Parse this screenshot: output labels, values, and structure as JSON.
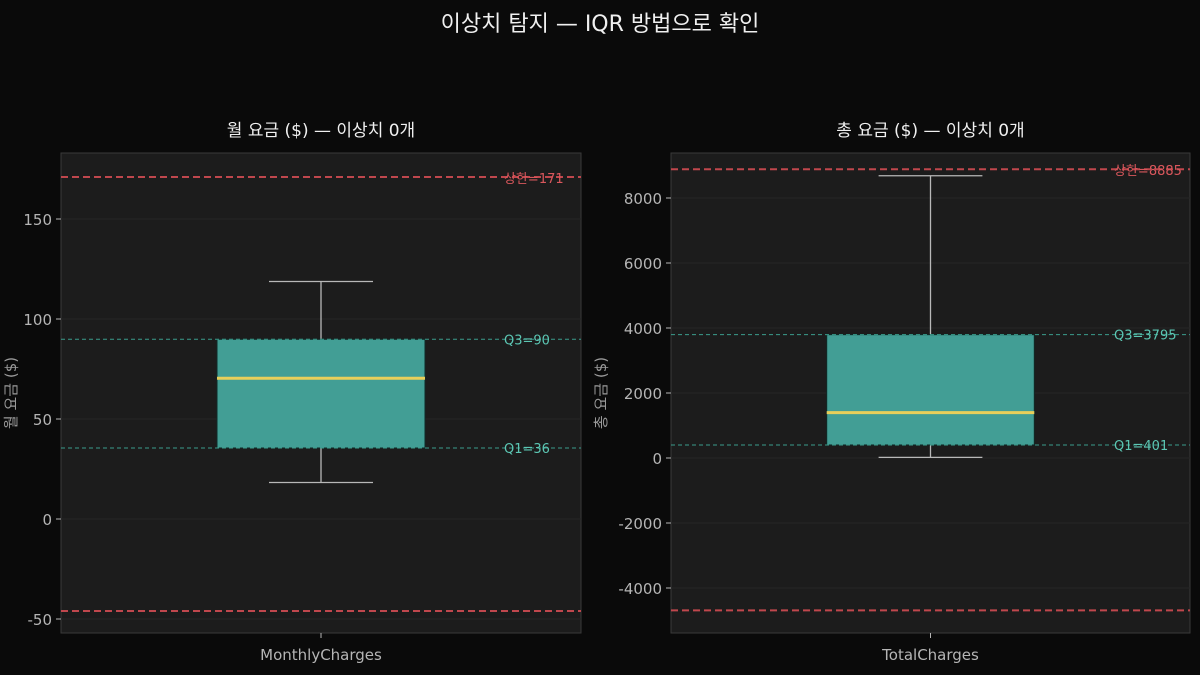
{
  "figure": {
    "title": "이상치 탐지 — IQR 방법으로 확인",
    "background": "#0a0a0a",
    "axes_background": "#1c1c1c",
    "colors": {
      "box_fill": "#429e95",
      "median": "#e8cf5a",
      "whisker": "#b8b8b8",
      "bound_line": "#c0474d",
      "bound_label": "#d9575c",
      "quartile_line": "#3a9c8c",
      "quartile_label": "#5cc7b4",
      "tick_label": "#b5b5b5",
      "grid": "#262626"
    }
  },
  "chart_data": [
    {
      "type": "box",
      "title": "월 요금 ($) — 이상치 0개",
      "xlabel": "MonthlyCharges",
      "ylabel": "월 요금 ($)",
      "category": "MonthlyCharges",
      "ylim": [
        -57,
        183
      ],
      "yticks": [
        -50,
        0,
        50,
        100,
        150
      ],
      "ytick_labels": [
        "-50",
        "0",
        "50",
        "100",
        "150"
      ],
      "box": {
        "whisker_low": 18.25,
        "q1": 35.5,
        "median": 70.35,
        "q3": 89.85,
        "whisker_high": 118.75
      },
      "outliers": 0,
      "bounds": {
        "upper": 171,
        "lower": -46
      },
      "annotations": {
        "upper": "상한=171",
        "q3": "Q3=90",
        "q1": "Q1=36"
      },
      "grid": true
    },
    {
      "type": "box",
      "title": "총 요금 ($) — 이상치 0개",
      "xlabel": "TotalCharges",
      "ylabel": "총 요금 ($)",
      "category": "TotalCharges",
      "ylim": [
        -5385,
        9385
      ],
      "yticks": [
        -4000,
        -2000,
        0,
        2000,
        4000,
        6000,
        8000
      ],
      "ytick_labels": [
        "-4000",
        "-2000",
        "0",
        "2000",
        "4000",
        "6000",
        "8000"
      ],
      "box": {
        "whisker_low": 19,
        "q1": 401,
        "median": 1397,
        "q3": 3795,
        "whisker_high": 8685
      },
      "outliers": 0,
      "bounds": {
        "upper": 8885,
        "lower": -4690
      },
      "annotations": {
        "upper": "상한=8885",
        "q3": "Q3=3795",
        "q1": "Q1=401"
      },
      "grid": true
    }
  ]
}
